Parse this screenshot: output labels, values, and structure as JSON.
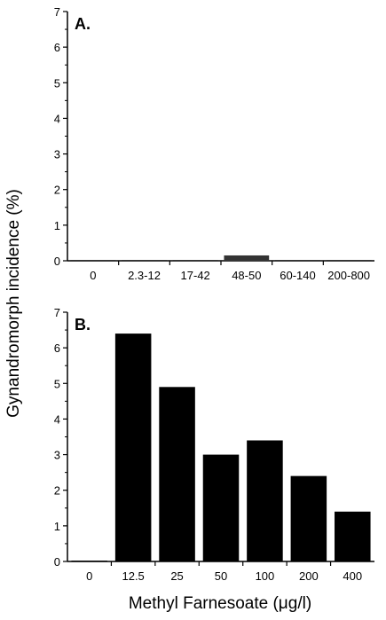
{
  "ylabel": "Gynandromorph incidence (%)",
  "xlabel": "Methyl Farnesoate (μg/l)",
  "chart_data": [
    {
      "type": "bar",
      "panel_label": "A.",
      "categories": [
        "0",
        "2.3-12",
        "17-42",
        "48-50",
        "60-140",
        "200-800"
      ],
      "values": [
        0,
        0,
        0,
        0.15,
        0,
        0
      ],
      "ylim": [
        0,
        7
      ],
      "yticks": [
        "0",
        "1",
        "2",
        "3",
        "4",
        "5",
        "6",
        "7"
      ],
      "bar_color": "#333333"
    },
    {
      "type": "bar",
      "panel_label": "B.",
      "categories": [
        "0",
        "12.5",
        "25",
        "50",
        "100",
        "200",
        "400"
      ],
      "values": [
        0,
        6.4,
        4.9,
        3.0,
        3.4,
        2.4,
        1.4
      ],
      "ylim": [
        0,
        7
      ],
      "yticks": [
        "0",
        "1",
        "2",
        "3",
        "4",
        "5",
        "6",
        "7"
      ],
      "bar_color": "#000000"
    }
  ]
}
